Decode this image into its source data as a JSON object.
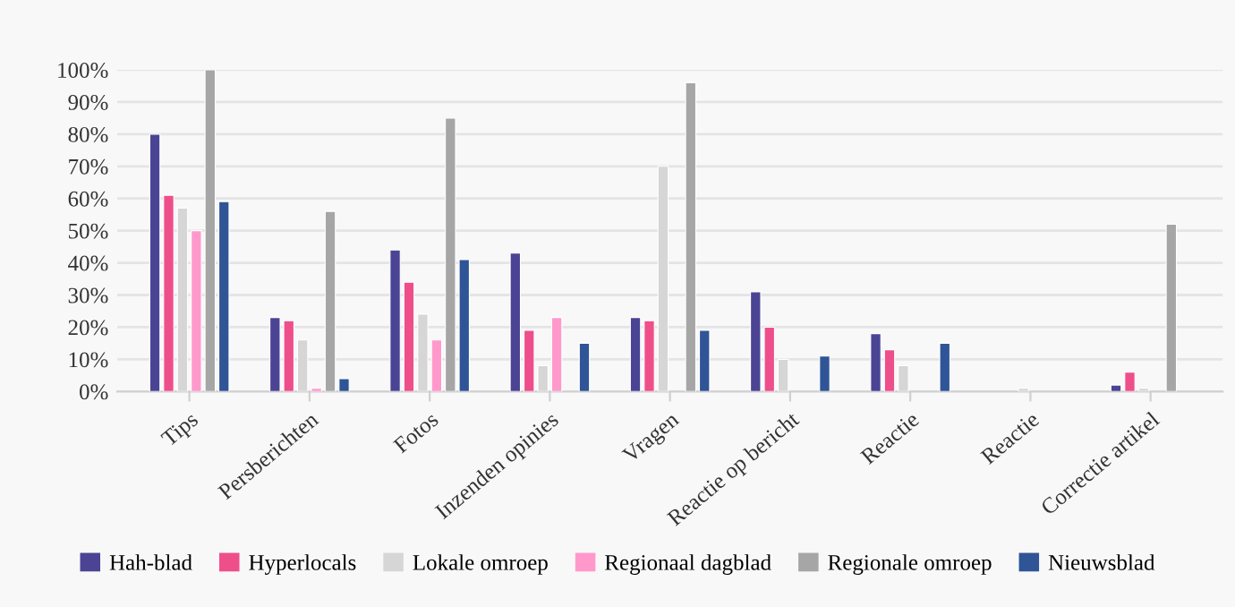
{
  "chart_data": {
    "type": "bar",
    "categories": [
      "Tips",
      "Persberichten",
      "Fotos",
      "Inzenden opinies",
      "Vragen",
      "Reactie op bericht",
      "Reactie",
      "Reactie",
      "Correctie artikel"
    ],
    "series": [
      {
        "name": "Hah-blad",
        "color": "#4b4495",
        "values": [
          80,
          23,
          44,
          43,
          23,
          31,
          18,
          null,
          2
        ]
      },
      {
        "name": "Hyperlocals",
        "color": "#ee4f8a",
        "values": [
          61,
          22,
          34,
          19,
          22,
          20,
          13,
          null,
          6
        ]
      },
      {
        "name": "Lokale omroep",
        "color": "#d6d6d6",
        "values": [
          57,
          16,
          24,
          8,
          70,
          10,
          8,
          1,
          1
        ]
      },
      {
        "name": "Regionaal dagblad",
        "color": "#ff99cc",
        "values": [
          50,
          1,
          16,
          23,
          null,
          null,
          null,
          null,
          null
        ]
      },
      {
        "name": "Regionale omroep",
        "color": "#a6a6a6",
        "values": [
          100,
          56,
          85,
          null,
          96,
          null,
          null,
          null,
          52
        ]
      },
      {
        "name": "Nieuwsblad",
        "color": "#2f5597",
        "values": [
          59,
          4,
          41,
          15,
          19,
          11,
          15,
          null,
          null
        ]
      }
    ],
    "ylim": [
      0,
      100
    ],
    "yticks": [
      {
        "value": 0,
        "label": "0%"
      },
      {
        "value": 10,
        "label": "10%"
      },
      {
        "value": 20,
        "label": "20%"
      },
      {
        "value": 30,
        "label": "30%"
      },
      {
        "value": 40,
        "label": "40%"
      },
      {
        "value": 50,
        "label": "50%"
      },
      {
        "value": 60,
        "label": "60%"
      },
      {
        "value": 70,
        "label": "70%"
      },
      {
        "value": 80,
        "label": "80%"
      },
      {
        "value": 90,
        "label": "90%"
      },
      {
        "value": 100,
        "label": "100%"
      }
    ],
    "grid": "y",
    "legend": "bottom"
  }
}
